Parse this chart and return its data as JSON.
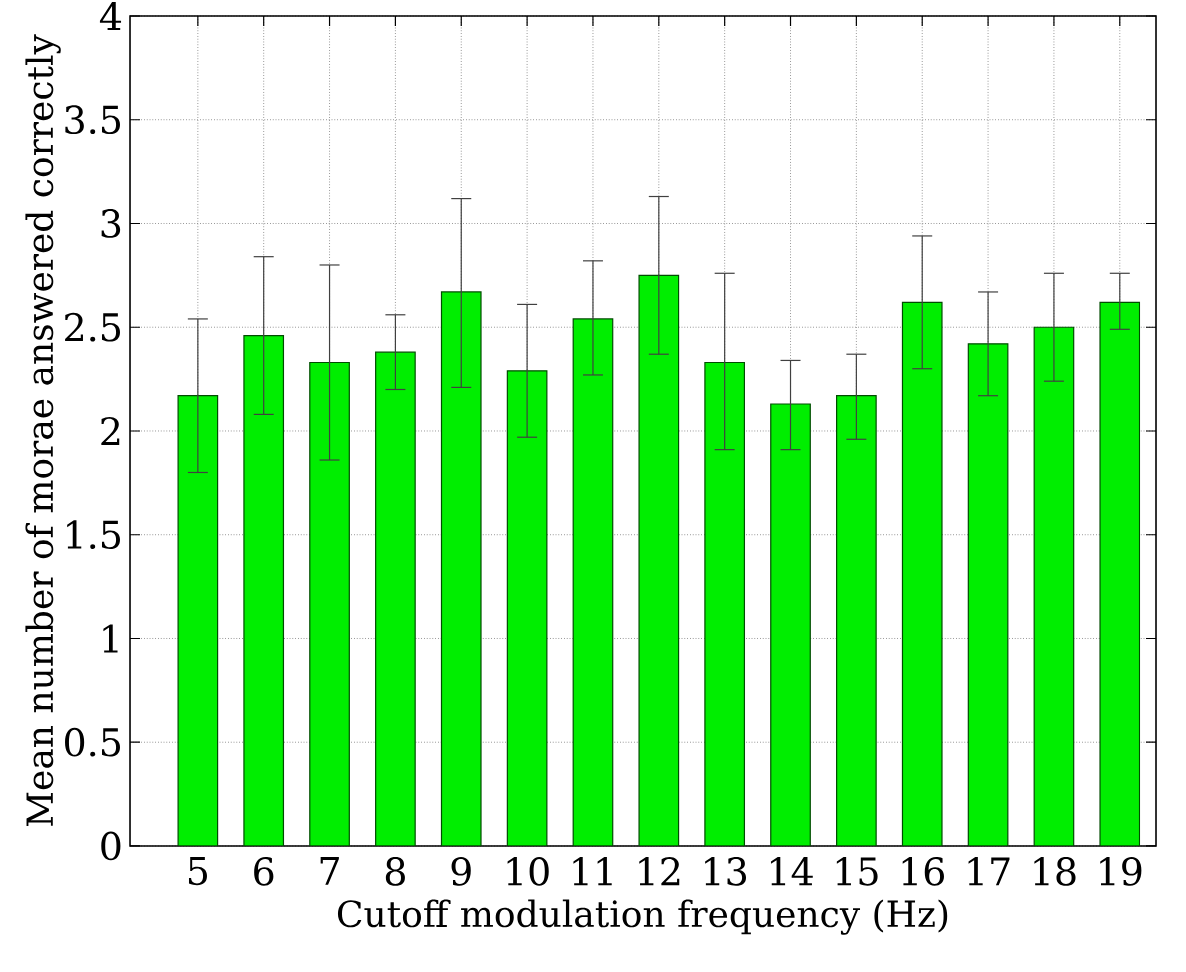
{
  "chart_data": {
    "type": "bar",
    "xlabel": "Cutoff modulation frequency (Hz)",
    "ylabel": "Mean number of morae answered correctly",
    "categories": [
      "5",
      "6",
      "7",
      "8",
      "9",
      "10",
      "11",
      "12",
      "13",
      "14",
      "15",
      "16",
      "17",
      "18",
      "19"
    ],
    "values": [
      2.17,
      2.46,
      2.33,
      2.38,
      2.67,
      2.29,
      2.54,
      2.75,
      2.33,
      2.13,
      2.17,
      2.62,
      2.42,
      2.5,
      2.62
    ],
    "errors": [
      [
        1.8,
        2.54
      ],
      [
        2.08,
        2.84
      ],
      [
        1.86,
        2.8
      ],
      [
        2.2,
        2.56
      ],
      [
        2.21,
        3.12
      ],
      [
        1.97,
        2.61
      ],
      [
        2.27,
        2.82
      ],
      [
        2.37,
        3.13
      ],
      [
        1.91,
        2.76
      ],
      [
        1.91,
        2.34
      ],
      [
        1.96,
        2.37
      ],
      [
        2.3,
        2.94
      ],
      [
        2.17,
        2.67
      ],
      [
        2.24,
        2.76
      ],
      [
        2.49,
        2.76
      ]
    ],
    "color": "#00ee00",
    "ylim": [
      0,
      4
    ],
    "yticks": [
      0,
      0.5,
      1,
      1.5,
      2,
      2.5,
      3,
      3.5,
      4
    ],
    "grid": true
  }
}
